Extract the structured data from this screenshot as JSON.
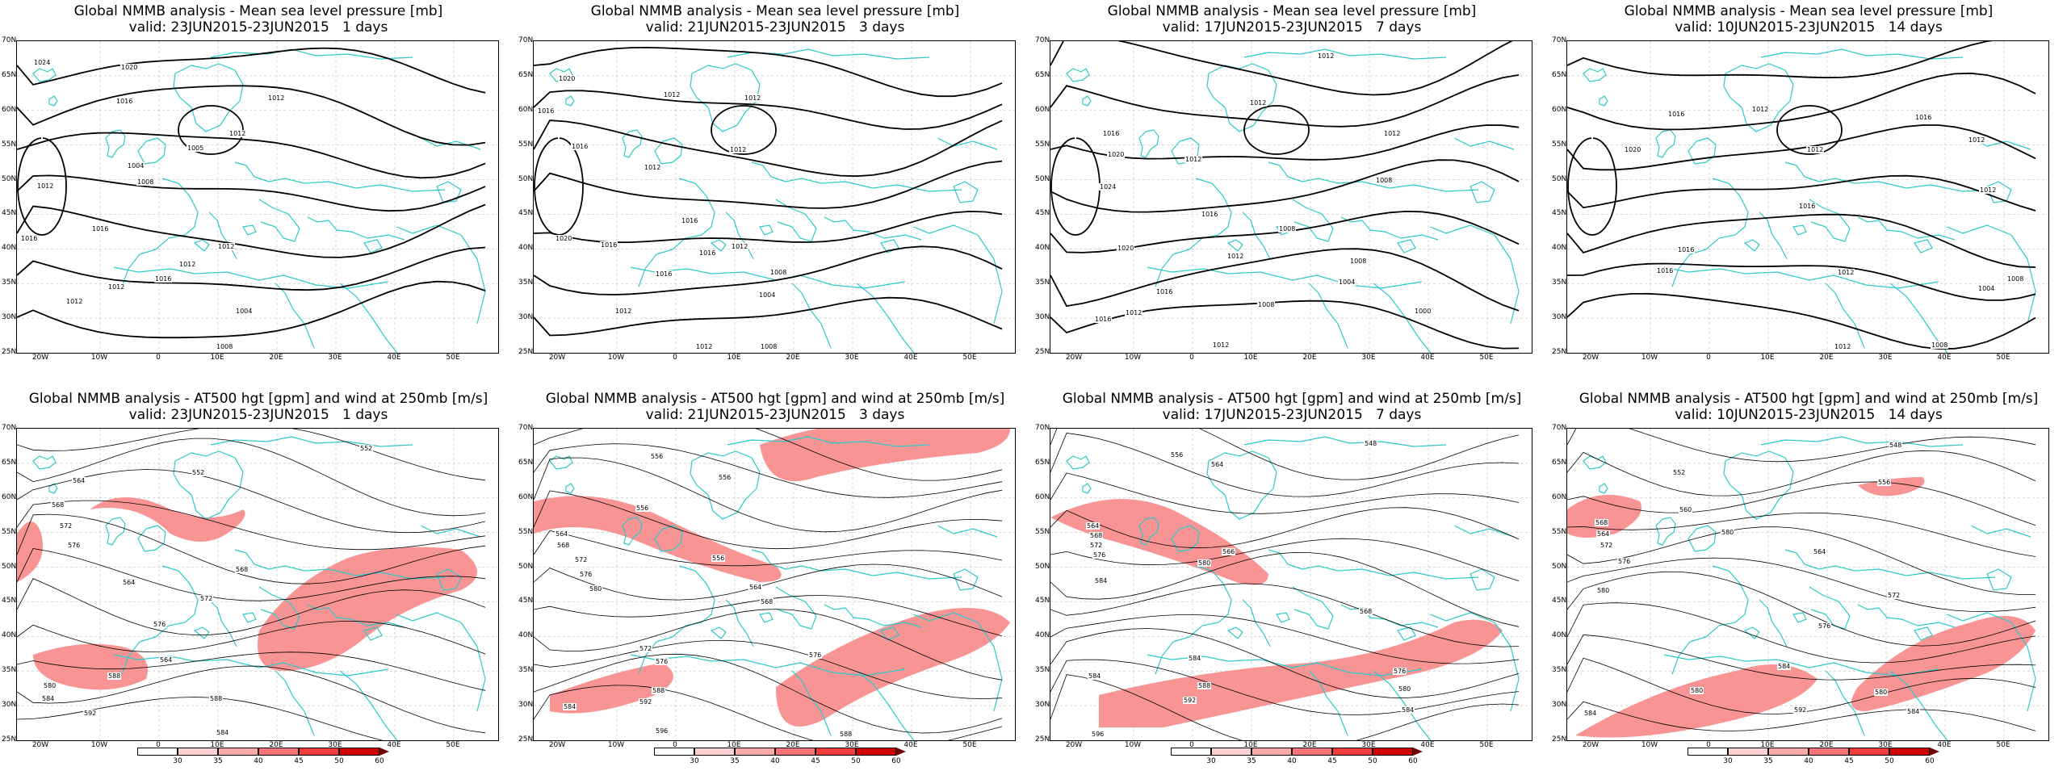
{
  "panels_top": [
    {
      "title": "Global NMMB analysis - Mean sea level pressure [mb]",
      "valid": "valid: 23JUN2015-23JUN2015   1 days",
      "labels": [
        {
          "t": "1024",
          "x": 20,
          "y": 22
        },
        {
          "t": "1020",
          "x": 128,
          "y": 28
        },
        {
          "t": "1012",
          "x": 310,
          "y": 66
        },
        {
          "t": "1016",
          "x": 122,
          "y": 70
        },
        {
          "t": "1012",
          "x": 262,
          "y": 110
        },
        {
          "t": "1004",
          "x": 136,
          "y": 150
        },
        {
          "t": "1008",
          "x": 148,
          "y": 170
        },
        {
          "t": "1012",
          "x": 24,
          "y": 175
        },
        {
          "t": "1016",
          "x": 4,
          "y": 240
        },
        {
          "t": "1016",
          "x": 92,
          "y": 228
        },
        {
          "t": "1012",
          "x": 248,
          "y": 250
        },
        {
          "t": "1012",
          "x": 200,
          "y": 272
        },
        {
          "t": "1012",
          "x": 112,
          "y": 300
        },
        {
          "t": "1016",
          "x": 170,
          "y": 290
        },
        {
          "t": "1004",
          "x": 270,
          "y": 330
        },
        {
          "t": "1008",
          "x": 246,
          "y": 378
        },
        {
          "t": "1012",
          "x": 60,
          "y": 318
        },
        {
          "t": "1005",
          "x": 210,
          "y": 128
        }
      ]
    },
    {
      "title": "Global NMMB analysis - Mean sea level pressure [mb]",
      "valid": "valid: 21JUN2015-23JUN2015   3 days",
      "labels": [
        {
          "t": "1020",
          "x": 30,
          "y": 42
        },
        {
          "t": "1016",
          "x": 4,
          "y": 82
        },
        {
          "t": "1016",
          "x": 46,
          "y": 126
        },
        {
          "t": "1012",
          "x": 260,
          "y": 66
        },
        {
          "t": "1012",
          "x": 160,
          "y": 62
        },
        {
          "t": "1012",
          "x": 136,
          "y": 152
        },
        {
          "t": "1012",
          "x": 242,
          "y": 130
        },
        {
          "t": "1016",
          "x": 182,
          "y": 218
        },
        {
          "t": "1020",
          "x": 26,
          "y": 240
        },
        {
          "t": "1016",
          "x": 82,
          "y": 248
        },
        {
          "t": "1016",
          "x": 204,
          "y": 258
        },
        {
          "t": "1012",
          "x": 244,
          "y": 250
        },
        {
          "t": "1008",
          "x": 292,
          "y": 282
        },
        {
          "t": "1004",
          "x": 278,
          "y": 310
        },
        {
          "t": "1016",
          "x": 150,
          "y": 284
        },
        {
          "t": "1012",
          "x": 100,
          "y": 330
        },
        {
          "t": "1008",
          "x": 280,
          "y": 376
        },
        {
          "t": "1012",
          "x": 200,
          "y": 390
        }
      ]
    },
    {
      "title": "Global NMMB analysis - Mean sea level pressure [mb]",
      "valid": "valid: 17JUN2015-23JUN2015   7 days",
      "labels": [
        {
          "t": "1012",
          "x": 330,
          "y": 14
        },
        {
          "t": "1012",
          "x": 246,
          "y": 72
        },
        {
          "t": "1016",
          "x": 64,
          "y": 110
        },
        {
          "t": "1020",
          "x": 70,
          "y": 136
        },
        {
          "t": "1024",
          "x": 60,
          "y": 176
        },
        {
          "t": "1012",
          "x": 166,
          "y": 142
        },
        {
          "t": "1012",
          "x": 412,
          "y": 110
        },
        {
          "t": "1008",
          "x": 402,
          "y": 168
        },
        {
          "t": "1016",
          "x": 186,
          "y": 210
        },
        {
          "t": "1008",
          "x": 282,
          "y": 228
        },
        {
          "t": "1020",
          "x": 82,
          "y": 252
        },
        {
          "t": "1012",
          "x": 218,
          "y": 262
        },
        {
          "t": "1008",
          "x": 370,
          "y": 268
        },
        {
          "t": "1004",
          "x": 356,
          "y": 294
        },
        {
          "t": "1016",
          "x": 130,
          "y": 306
        },
        {
          "t": "1012",
          "x": 92,
          "y": 332
        },
        {
          "t": "1016",
          "x": 54,
          "y": 340
        },
        {
          "t": "1008",
          "x": 256,
          "y": 322
        },
        {
          "t": "1000",
          "x": 450,
          "y": 330
        },
        {
          "t": "1012",
          "x": 200,
          "y": 372
        }
      ]
    },
    {
      "title": "Global NMMB analysis - Mean sea level pressure [mb]",
      "valid": "valid: 10JUN2015-23JUN2015   14 days",
      "labels": [
        {
          "t": "1016",
          "x": 124,
          "y": 86
        },
        {
          "t": "1020",
          "x": 70,
          "y": 130
        },
        {
          "t": "1012",
          "x": 228,
          "y": 80
        },
        {
          "t": "1012",
          "x": 296,
          "y": 130
        },
        {
          "t": "1016",
          "x": 430,
          "y": 90
        },
        {
          "t": "1012",
          "x": 496,
          "y": 118
        },
        {
          "t": "1012",
          "x": 510,
          "y": 180
        },
        {
          "t": "1016",
          "x": 286,
          "y": 200
        },
        {
          "t": "1016",
          "x": 136,
          "y": 254
        },
        {
          "t": "1016",
          "x": 110,
          "y": 280
        },
        {
          "t": "1012",
          "x": 334,
          "y": 282
        },
        {
          "t": "1004",
          "x": 508,
          "y": 302
        },
        {
          "t": "1008",
          "x": 544,
          "y": 290
        },
        {
          "t": "1008",
          "x": 450,
          "y": 372
        },
        {
          "t": "1012",
          "x": 330,
          "y": 376
        }
      ]
    }
  ],
  "panels_bottom": [
    {
      "title": "Global NMMB analysis - AT500 hgt [gpm] and wind at 250mb [m/s]",
      "valid": "valid: 23JUN2015-23JUN2015   1 days",
      "labels": [
        {
          "t": "552",
          "x": 424,
          "y": 20
        },
        {
          "t": "552",
          "x": 216,
          "y": 50
        },
        {
          "t": "564",
          "x": 68,
          "y": 60
        },
        {
          "t": "568",
          "x": 42,
          "y": 90
        },
        {
          "t": "572",
          "x": 52,
          "y": 116
        },
        {
          "t": "576",
          "x": 62,
          "y": 140
        },
        {
          "t": "568",
          "x": 270,
          "y": 170
        },
        {
          "t": "572",
          "x": 226,
          "y": 206
        },
        {
          "t": "576",
          "x": 168,
          "y": 238
        },
        {
          "t": "564",
          "x": 176,
          "y": 282
        },
        {
          "t": "580",
          "x": 32,
          "y": 314
        },
        {
          "t": "584",
          "x": 30,
          "y": 330
        },
        {
          "t": "588",
          "x": 112,
          "y": 302
        },
        {
          "t": "592",
          "x": 82,
          "y": 348
        },
        {
          "t": "564",
          "x": 130,
          "y": 186
        },
        {
          "t": "584",
          "x": 246,
          "y": 372
        },
        {
          "t": "588",
          "x": 238,
          "y": 330
        }
      ]
    },
    {
      "title": "Global NMMB analysis - AT500 hgt [gpm] and wind at 250mb [m/s]",
      "valid": "valid: 21JUN2015-23JUN2015   3 days",
      "labels": [
        {
          "t": "556",
          "x": 228,
          "y": 56
        },
        {
          "t": "556",
          "x": 144,
          "y": 30
        },
        {
          "t": "556",
          "x": 126,
          "y": 94
        },
        {
          "t": "564",
          "x": 26,
          "y": 126
        },
        {
          "t": "568",
          "x": 28,
          "y": 140
        },
        {
          "t": "572",
          "x": 50,
          "y": 158
        },
        {
          "t": "576",
          "x": 56,
          "y": 176
        },
        {
          "t": "580",
          "x": 68,
          "y": 194
        },
        {
          "t": "556",
          "x": 220,
          "y": 156
        },
        {
          "t": "564",
          "x": 266,
          "y": 192
        },
        {
          "t": "568",
          "x": 280,
          "y": 210
        },
        {
          "t": "572",
          "x": 130,
          "y": 268
        },
        {
          "t": "576",
          "x": 150,
          "y": 284
        },
        {
          "t": "584",
          "x": 36,
          "y": 340
        },
        {
          "t": "592",
          "x": 130,
          "y": 334
        },
        {
          "t": "596",
          "x": 150,
          "y": 370
        },
        {
          "t": "588",
          "x": 146,
          "y": 320
        },
        {
          "t": "576",
          "x": 340,
          "y": 276
        },
        {
          "t": "588",
          "x": 378,
          "y": 376
        }
      ]
    },
    {
      "title": "Global NMMB analysis - AT500 hgt [gpm] and wind at 250mb [m/s]",
      "valid": "valid: 17JUN2015-23JUN2015   7 days",
      "labels": [
        {
          "t": "548",
          "x": 388,
          "y": 14
        },
        {
          "t": "556",
          "x": 148,
          "y": 28
        },
        {
          "t": "564",
          "x": 198,
          "y": 40
        },
        {
          "t": "564",
          "x": 44,
          "y": 116
        },
        {
          "t": "568",
          "x": 48,
          "y": 128
        },
        {
          "t": "572",
          "x": 48,
          "y": 140
        },
        {
          "t": "576",
          "x": 52,
          "y": 152
        },
        {
          "t": "584",
          "x": 54,
          "y": 184
        },
        {
          "t": "580",
          "x": 182,
          "y": 162
        },
        {
          "t": "566",
          "x": 212,
          "y": 148
        },
        {
          "t": "568",
          "x": 382,
          "y": 222
        },
        {
          "t": "584",
          "x": 170,
          "y": 280
        },
        {
          "t": "588",
          "x": 182,
          "y": 314
        },
        {
          "t": "592",
          "x": 164,
          "y": 332
        },
        {
          "t": "596",
          "x": 50,
          "y": 374
        },
        {
          "t": "584",
          "x": 46,
          "y": 302
        },
        {
          "t": "576",
          "x": 424,
          "y": 296
        },
        {
          "t": "580",
          "x": 430,
          "y": 318
        },
        {
          "t": "584",
          "x": 434,
          "y": 344
        }
      ]
    },
    {
      "title": "Global NMMB analysis - AT500 hgt [gpm] and wind at 250mb [m/s]",
      "valid": "valid: 10JUN2015-23JUN2015   14 days",
      "labels": [
        {
          "t": "548",
          "x": 398,
          "y": 16
        },
        {
          "t": "552",
          "x": 130,
          "y": 50
        },
        {
          "t": "556",
          "x": 384,
          "y": 62
        },
        {
          "t": "560",
          "x": 138,
          "y": 96
        },
        {
          "t": "564",
          "x": 36,
          "y": 126
        },
        {
          "t": "568",
          "x": 34,
          "y": 112
        },
        {
          "t": "572",
          "x": 40,
          "y": 140
        },
        {
          "t": "576",
          "x": 62,
          "y": 160
        },
        {
          "t": "580",
          "x": 36,
          "y": 196
        },
        {
          "t": "580",
          "x": 190,
          "y": 124
        },
        {
          "t": "564",
          "x": 304,
          "y": 148
        },
        {
          "t": "576",
          "x": 310,
          "y": 240
        },
        {
          "t": "584",
          "x": 260,
          "y": 290
        },
        {
          "t": "580",
          "x": 152,
          "y": 320
        },
        {
          "t": "584",
          "x": 20,
          "y": 348
        },
        {
          "t": "592",
          "x": 280,
          "y": 344
        },
        {
          "t": "580",
          "x": 380,
          "y": 322
        },
        {
          "t": "584",
          "x": 420,
          "y": 346
        },
        {
          "t": "572",
          "x": 396,
          "y": 202
        }
      ]
    }
  ],
  "axes": {
    "lat_labels": [
      "70N",
      "65N",
      "60N",
      "55N",
      "50N",
      "45N",
      "40N",
      "35N",
      "30N",
      "25N"
    ],
    "lon_labels": [
      "20W",
      "10W",
      "0",
      "10E",
      "20E",
      "30E",
      "40E",
      "50E"
    ]
  },
  "colorbar": {
    "ticks": [
      "30",
      "35",
      "40",
      "45",
      "50",
      "60"
    ],
    "colors": [
      "#ffffff",
      "#ffd0d0",
      "#ffa8a8",
      "#ff7474",
      "#f23b3b",
      "#d00000"
    ]
  },
  "colors": {
    "coast": "#2ec9c9",
    "contour": "#000000",
    "grid": "#bbbbbb",
    "jet": "#ee2222"
  }
}
